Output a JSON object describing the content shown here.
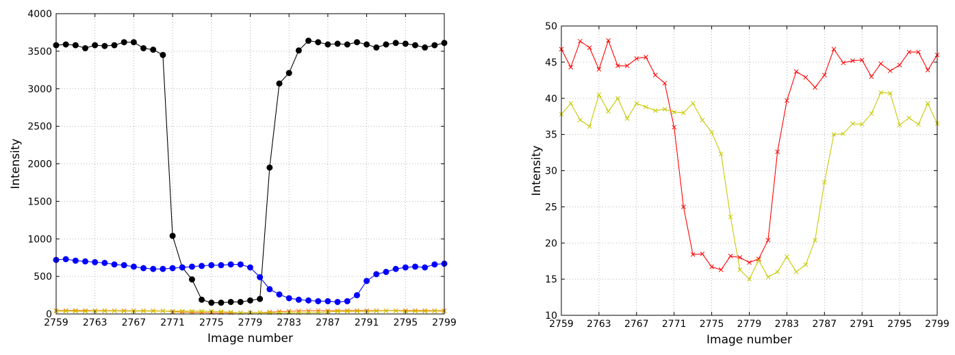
{
  "chart_data": [
    {
      "type": "line",
      "title": "",
      "xlabel": "Image number",
      "ylabel": "Intensity",
      "xlim": [
        2759,
        2799
      ],
      "ylim": [
        0,
        4000
      ],
      "xticks": [
        "2759",
        "2763",
        "2767",
        "2771",
        "2775",
        "2779",
        "2783",
        "2787",
        "2791",
        "2795",
        "2799"
      ],
      "yticks": [
        "0",
        "500",
        "1000",
        "1500",
        "2000",
        "2500",
        "3000",
        "3500",
        "4000"
      ],
      "grid": true,
      "x": [
        2759,
        2760,
        2761,
        2762,
        2763,
        2764,
        2765,
        2766,
        2767,
        2768,
        2769,
        2770,
        2771,
        2772,
        2773,
        2774,
        2775,
        2776,
        2777,
        2778,
        2779,
        2780,
        2781,
        2782,
        2783,
        2784,
        2785,
        2786,
        2787,
        2788,
        2789,
        2790,
        2791,
        2792,
        2793,
        2794,
        2795,
        2796,
        2797,
        2798,
        2799
      ],
      "series": [
        {
          "color": "#000000",
          "marker": "circle",
          "values": [
            3580,
            3590,
            3580,
            3540,
            3580,
            3570,
            3580,
            3620,
            3620,
            3540,
            3520,
            3450,
            1040,
            620,
            460,
            190,
            150,
            150,
            160,
            160,
            180,
            200,
            1950,
            3070,
            3210,
            3510,
            3640,
            3620,
            3590,
            3600,
            3590,
            3620,
            3590,
            3550,
            3590,
            3610,
            3600,
            3580,
            3550,
            3580,
            3610
          ]
        },
        {
          "color": "#0000ff",
          "marker": "circle",
          "values": [
            720,
            730,
            710,
            700,
            690,
            680,
            660,
            650,
            630,
            610,
            600,
            600,
            610,
            620,
            630,
            640,
            650,
            650,
            660,
            660,
            620,
            490,
            330,
            260,
            210,
            190,
            180,
            170,
            170,
            160,
            170,
            250,
            440,
            530,
            560,
            600,
            620,
            630,
            620,
            660,
            670
          ]
        },
        {
          "color": "#ff6600",
          "marker": "x",
          "values": [
            45,
            46,
            46,
            45,
            45,
            44,
            44,
            43,
            43,
            42,
            42,
            41,
            30,
            25,
            22,
            20,
            18,
            17,
            16,
            17,
            18,
            20,
            25,
            32,
            36,
            40,
            42,
            43,
            44,
            44,
            45,
            45,
            45,
            44,
            44,
            44,
            45,
            45,
            45,
            44,
            44
          ]
        },
        {
          "color": "#c8c800",
          "marker": "x",
          "values": [
            38,
            39,
            37,
            36,
            40,
            38,
            40,
            37,
            39,
            38,
            38,
            38,
            38,
            38,
            38,
            37,
            35,
            32,
            24,
            16,
            15,
            18,
            15,
            16,
            18,
            16,
            17,
            20,
            28,
            35,
            35,
            36,
            36,
            38,
            41,
            41,
            36,
            37,
            36,
            39,
            36
          ]
        }
      ]
    },
    {
      "type": "line",
      "title": "",
      "xlabel": "Image number",
      "ylabel": "Intensity",
      "xlim": [
        2759,
        2799
      ],
      "ylim": [
        10,
        50
      ],
      "xticks": [
        "2759",
        "2763",
        "2767",
        "2771",
        "2775",
        "2779",
        "2783",
        "2787",
        "2791",
        "2795",
        "2799"
      ],
      "yticks": [
        "10",
        "15",
        "20",
        "25",
        "30",
        "35",
        "40",
        "45",
        "50"
      ],
      "grid": true,
      "x": [
        2759,
        2760,
        2761,
        2762,
        2763,
        2764,
        2765,
        2766,
        2767,
        2768,
        2769,
        2770,
        2771,
        2772,
        2773,
        2774,
        2775,
        2776,
        2777,
        2778,
        2779,
        2780,
        2781,
        2782,
        2783,
        2784,
        2785,
        2786,
        2787,
        2788,
        2789,
        2790,
        2791,
        2792,
        2793,
        2794,
        2795,
        2796,
        2797,
        2798,
        2799
      ],
      "series": [
        {
          "color": "#ff0000",
          "marker": "x",
          "values": [
            46.8,
            44.3,
            47.9,
            47.0,
            44.0,
            48.0,
            44.5,
            44.5,
            45.5,
            45.7,
            43.2,
            42.1,
            36.0,
            25.0,
            18.4,
            18.5,
            16.7,
            16.3,
            18.2,
            18.0,
            17.3,
            17.8,
            20.4,
            32.6,
            39.7,
            43.7,
            42.9,
            41.5,
            43.2,
            46.8,
            44.9,
            45.2,
            45.3,
            43.0,
            44.8,
            43.8,
            44.6,
            46.4,
            46.4,
            43.9,
            46.0
          ]
        },
        {
          "color": "#c8c800",
          "marker": "x",
          "values": [
            37.8,
            39.3,
            37.0,
            36.1,
            40.5,
            38.2,
            40.0,
            37.2,
            39.3,
            38.8,
            38.3,
            38.5,
            38.1,
            38.0,
            39.3,
            37.0,
            35.3,
            32.3,
            23.6,
            16.3,
            15.0,
            17.6,
            15.3,
            16.0,
            18.1,
            16.0,
            17.0,
            20.4,
            28.4,
            35.0,
            35.1,
            36.5,
            36.4,
            37.9,
            40.8,
            40.7,
            36.3,
            37.3,
            36.4,
            39.3,
            36.5
          ]
        }
      ]
    }
  ]
}
